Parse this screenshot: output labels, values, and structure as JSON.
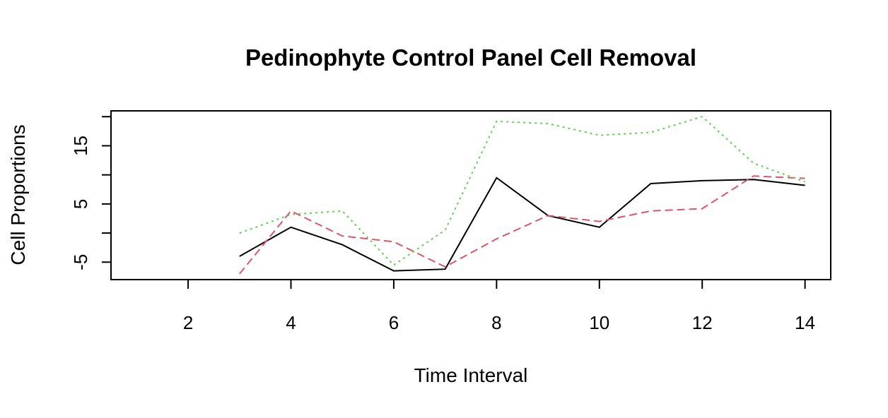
{
  "chart_data": {
    "type": "line",
    "title": "Pedinophyte Control Panel Cell Removal",
    "xlabel": "Time Interval",
    "ylabel": "Cell Proportions",
    "xlim": [
      0.5,
      14.5
    ],
    "ylim": [
      -8,
      21
    ],
    "x_ticks": [
      2,
      4,
      6,
      8,
      10,
      12,
      14
    ],
    "y_ticks": [
      -5,
      0,
      5,
      10,
      15,
      20
    ],
    "y_tick_labels": [
      "-5",
      "",
      "5",
      "",
      "15",
      ""
    ],
    "grid": false,
    "x": [
      3,
      4,
      5,
      6,
      7,
      8,
      9,
      10,
      11,
      12,
      13,
      14
    ],
    "series": [
      {
        "color": "#000000",
        "line_style": "solid",
        "values": [
          -4,
          1,
          -2,
          -6.5,
          -6.2,
          9.5,
          3,
          1,
          8.5,
          9,
          9.2,
          8.2
        ]
      },
      {
        "color": "#DF536B",
        "line_style": "dashed",
        "values": [
          -7,
          3.8,
          -0.5,
          -1.5,
          -5.8,
          -1,
          3,
          2,
          3.8,
          4.2,
          9.8,
          9.4
        ]
      },
      {
        "color": "#61D04F",
        "line_style": "dotted",
        "values": [
          0,
          3.2,
          3.8,
          -5.5,
          0.5,
          19.2,
          18.8,
          16.8,
          17.3,
          20,
          12,
          8.8
        ]
      }
    ]
  }
}
